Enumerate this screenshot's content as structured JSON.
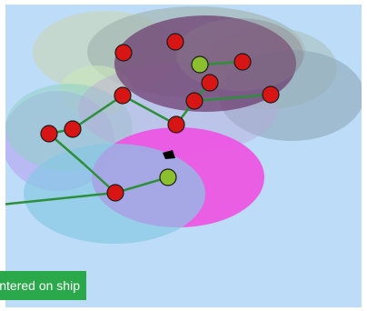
{
  "status_toast": {
    "label": "Centered on ship",
    "color": "#2aa84a"
  },
  "colors": {
    "background": "#bcdcf8",
    "planet_enemy": "#d81515",
    "planet_own": "#8cbf2e",
    "route_line": "#2d8f3a",
    "ship": "#000000"
  },
  "icons": {
    "ship": "ship-icon",
    "enemy_planet": "enemy-planet-icon",
    "own_planet": "own-planet-icon"
  }
}
